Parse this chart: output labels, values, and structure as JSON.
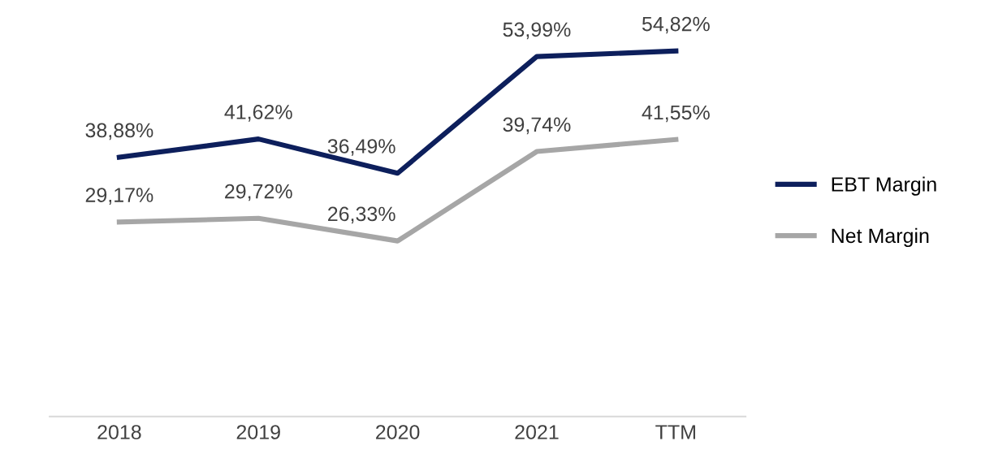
{
  "chart_data": {
    "type": "line",
    "categories": [
      "2018",
      "2019",
      "2020",
      "2021",
      "TTM"
    ],
    "series": [
      {
        "name": "EBT Margin",
        "color": "#0d1f5c",
        "values": [
          38.88,
          41.62,
          36.49,
          53.99,
          54.82
        ],
        "value_labels": [
          "38,88%",
          "41,62%",
          "36,49%",
          "53,99%",
          "54,82%"
        ]
      },
      {
        "name": "Net Margin",
        "color": "#a6a6a6",
        "values": [
          29.17,
          29.72,
          26.33,
          39.74,
          41.55
        ],
        "value_labels": [
          "29,17%",
          "29,72%",
          "26,33%",
          "39,74%",
          "41,55%"
        ]
      }
    ],
    "tick_labels": "x",
    "grid": false,
    "legend": "right",
    "marker": "none",
    "line_style": "solid"
  }
}
